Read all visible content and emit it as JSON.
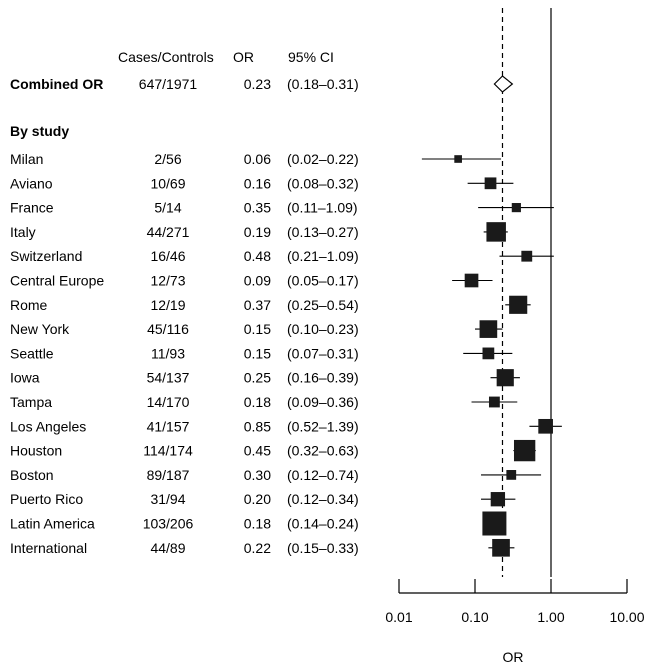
{
  "chart_data": {
    "type": "forest",
    "x_scale": "log",
    "xlabel": "OR",
    "xlim": [
      0.01,
      10.0
    ],
    "xticks": [
      "0.01",
      "0.10",
      "1.00",
      "10.00"
    ],
    "xtick_values": [
      0.01,
      0.1,
      1.0,
      10.0
    ],
    "reference_line": 1.0,
    "combined_line": 0.23,
    "headers": {
      "cases_controls": "Cases/Controls",
      "or": "OR",
      "ci": "95% CI"
    },
    "combined": {
      "label": "Combined OR",
      "cases_controls": "647/1971",
      "or": "0.23",
      "ci": "(0.18–0.31)",
      "or_value": 0.23,
      "lower": 0.18,
      "upper": 0.31
    },
    "group_label": "By study",
    "studies": [
      {
        "name": "Milan",
        "cases_controls": "2/56",
        "or": "0.06",
        "ci": "(0.02–0.22)",
        "or_value": 0.06,
        "lower": 0.02,
        "upper": 0.22,
        "weight": 2
      },
      {
        "name": "Aviano",
        "cases_controls": "10/69",
        "or": "0.16",
        "ci": "(0.08–0.32)",
        "or_value": 0.16,
        "lower": 0.08,
        "upper": 0.32,
        "weight": 9
      },
      {
        "name": "France",
        "cases_controls": "5/14",
        "or": "0.35",
        "ci": "(0.11–1.09)",
        "or_value": 0.35,
        "lower": 0.11,
        "upper": 1.09,
        "weight": 4
      },
      {
        "name": "Italy",
        "cases_controls": "44/271",
        "or": "0.19",
        "ci": "(0.13–0.27)",
        "or_value": 0.19,
        "lower": 0.13,
        "upper": 0.27,
        "weight": 36
      },
      {
        "name": "Switzerland",
        "cases_controls": "16/46",
        "or": "0.48",
        "ci": "(0.21–1.09)",
        "or_value": 0.48,
        "lower": 0.21,
        "upper": 1.09,
        "weight": 7
      },
      {
        "name": "Central Europe",
        "cases_controls": "12/73",
        "or": "0.09",
        "ci": "(0.05–0.17)",
        "or_value": 0.09,
        "lower": 0.05,
        "upper": 0.17,
        "weight": 14
      },
      {
        "name": "Rome",
        "cases_controls": "12/19",
        "or": "0.37",
        "ci": "(0.25–0.54)",
        "or_value": 0.37,
        "lower": 0.25,
        "upper": 0.54,
        "weight": 30
      },
      {
        "name": "New York",
        "cases_controls": "45/116",
        "or": "0.15",
        "ci": "(0.10–0.23)",
        "or_value": 0.15,
        "lower": 0.1,
        "upper": 0.23,
        "weight": 28
      },
      {
        "name": "Seattle",
        "cases_controls": "11/93",
        "or": "0.15",
        "ci": "(0.07–0.31)",
        "or_value": 0.15,
        "lower": 0.07,
        "upper": 0.31,
        "weight": 9
      },
      {
        "name": "Iowa",
        "cases_controls": "54/137",
        "or": "0.25",
        "ci": "(0.16–0.39)",
        "or_value": 0.25,
        "lower": 0.16,
        "upper": 0.39,
        "weight": 26
      },
      {
        "name": "Tampa",
        "cases_controls": "14/170",
        "or": "0.18",
        "ci": "(0.09–0.36)",
        "or_value": 0.18,
        "lower": 0.09,
        "upper": 0.36,
        "weight": 7
      },
      {
        "name": "Los Angeles",
        "cases_controls": "41/157",
        "or": "0.85",
        "ci": "(0.52–1.39)",
        "or_value": 0.85,
        "lower": 0.52,
        "upper": 1.39,
        "weight": 17
      },
      {
        "name": "Houston",
        "cases_controls": "114/174",
        "or": "0.45",
        "ci": "(0.32–0.63)",
        "or_value": 0.45,
        "lower": 0.32,
        "upper": 0.63,
        "weight": 45
      },
      {
        "name": "Boston",
        "cases_controls": "89/187",
        "or": "0.30",
        "ci": "(0.12–0.74)",
        "or_value": 0.3,
        "lower": 0.12,
        "upper": 0.74,
        "weight": 5
      },
      {
        "name": "Puerto Rico",
        "cases_controls": "31/94",
        "or": "0.20",
        "ci": "(0.12–0.34)",
        "or_value": 0.2,
        "lower": 0.12,
        "upper": 0.34,
        "weight": 16
      },
      {
        "name": "Latin America",
        "cases_controls": "103/206",
        "or": "0.18",
        "ci": "(0.14–0.24)",
        "or_value": 0.18,
        "lower": 0.14,
        "upper": 0.24,
        "weight": 60
      },
      {
        "name": "International",
        "cases_controls": "44/89",
        "or": "0.22",
        "ci": "(0.15–0.33)",
        "or_value": 0.22,
        "lower": 0.15,
        "upper": 0.33,
        "weight": 28
      }
    ]
  }
}
